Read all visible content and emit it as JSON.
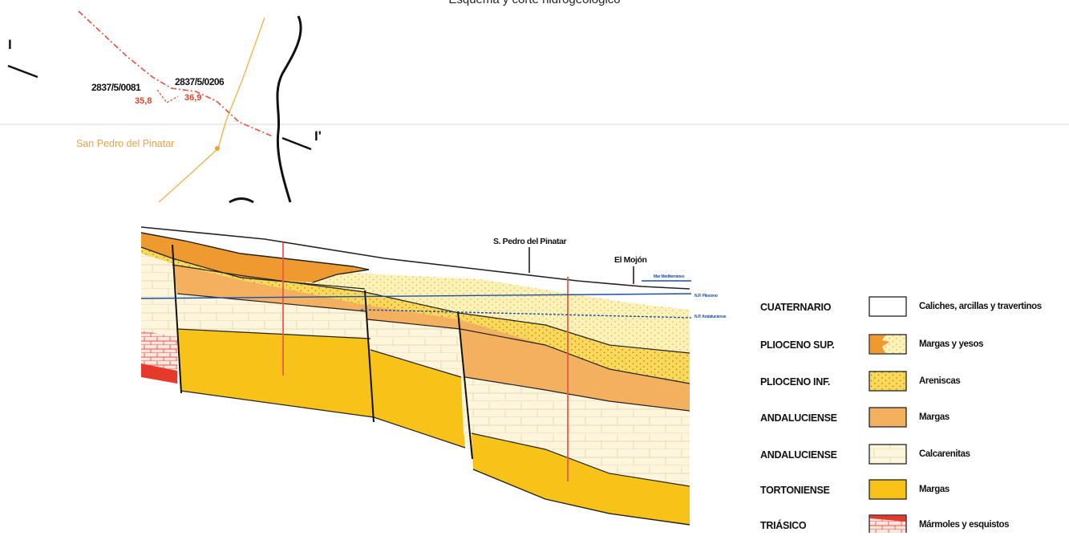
{
  "title": "Esquema y corte hidrogeológico",
  "map": {
    "wells": [
      {
        "id": "2837/5/0081",
        "value": "35,8"
      },
      {
        "id": "2837/5/0206",
        "value": "36,9"
      }
    ],
    "town": "San Pedro del Pinatar",
    "section_start": "I",
    "section_end": "I'"
  },
  "section": {
    "place_1": "S. Pedro del Pinatar",
    "place_2": "El Mojón",
    "sea_label": "Mar Mediterráneo",
    "np_plioceno": "N.P. Plioceno",
    "np_andaluciense": "N.P. Andaluciense"
  },
  "legend": [
    {
      "age": "CUATERNARIO",
      "description": "Caliches, arcillas y travertinos",
      "color": "#ffffff",
      "pattern": "plain"
    },
    {
      "age": "PLIOCENO SUP.",
      "description": "Margas y yesos",
      "color": "#ef9a2e",
      "pattern": "split"
    },
    {
      "age": "PLIOCENO INF.",
      "description": "Areniscas",
      "color": "#fbd85a",
      "pattern": "dots"
    },
    {
      "age": "ANDALUCIENSE",
      "description": "Margas",
      "color": "#f3b160",
      "pattern": "plain"
    },
    {
      "age": "ANDALUCIENSE",
      "description": "Calcarenitas",
      "color": "#fdf6dc",
      "pattern": "bricks"
    },
    {
      "age": "TORTONIENSE",
      "description": "Margas",
      "color": "#f8c318",
      "pattern": "plain"
    },
    {
      "age": "TRIÁSICO",
      "description": "Mármoles y esquistos",
      "color": "#e53a2a",
      "pattern": "bricks-red"
    }
  ]
}
